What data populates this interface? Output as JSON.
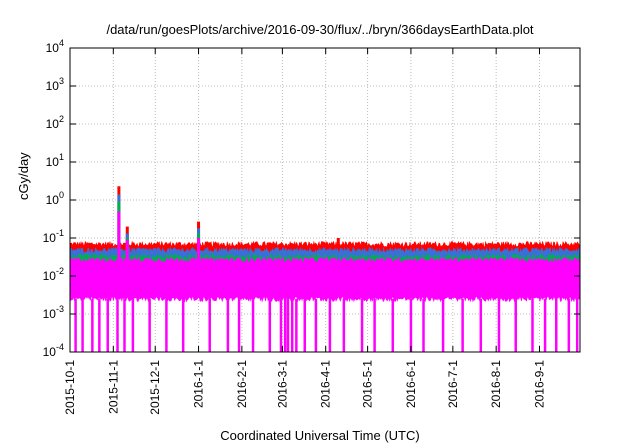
{
  "chart_data": {
    "type": "line",
    "title": "/data/run/goesPlots/archive/2016-09-30/flux/../bryn/366daysEarthData.plot",
    "xlabel": "Coordinated Universal Time (UTC)",
    "ylabel": "cGy/day",
    "xlim": [
      "2015-10-01",
      "2016-09-30"
    ],
    "ylim": [
      0.0001,
      10000
    ],
    "yscale": "log",
    "grid": true,
    "x_ticks": [
      "2015-10-1",
      "2015-11-1",
      "2015-12-1",
      "2016-1-1",
      "2016-2-1",
      "2016-3-1",
      "2016-4-1",
      "2016-5-1",
      "2016-6-1",
      "2016-7-1",
      "2016-8-1",
      "2016-9-1"
    ],
    "y_ticks": [
      {
        "value": 0.0001,
        "base": "10",
        "exp": "-4"
      },
      {
        "value": 0.001,
        "base": "10",
        "exp": "-3"
      },
      {
        "value": 0.01,
        "base": "10",
        "exp": "-2"
      },
      {
        "value": 0.1,
        "base": "10",
        "exp": "-1"
      },
      {
        "value": 1,
        "base": "10",
        "exp": "0"
      },
      {
        "value": 10,
        "base": "10",
        "exp": "1"
      },
      {
        "value": 100,
        "base": "10",
        "exp": "2"
      },
      {
        "value": 1000,
        "base": "10",
        "exp": "3"
      },
      {
        "value": 10000,
        "base": "10",
        "exp": "4"
      }
    ],
    "series": [
      {
        "color": "#ff0000",
        "baseline": 0.065,
        "spikes": [
          {
            "date": "2015-11-05",
            "value": 2.3
          },
          {
            "date": "2015-11-11",
            "value": 0.2
          },
          {
            "date": "2016-01-01",
            "value": 0.27
          },
          {
            "date": "2016-04-10",
            "value": 0.1
          }
        ]
      },
      {
        "color": "#3a6fd8",
        "baseline": 0.045,
        "spikes": [
          {
            "date": "2015-11-05",
            "value": 1.4
          },
          {
            "date": "2015-11-11",
            "value": 0.13
          },
          {
            "date": "2016-01-01",
            "value": 0.18
          }
        ]
      },
      {
        "color": "#00b050",
        "baseline": 0.03,
        "spikes": [
          {
            "date": "2015-11-05",
            "value": 0.9
          },
          {
            "date": "2015-11-11",
            "value": 0.1
          },
          {
            "date": "2016-01-01",
            "value": 0.13
          }
        ]
      },
      {
        "color": "#ff00ff",
        "baseline": 0.025,
        "floor": 0.0025,
        "spikes": [
          {
            "date": "2015-11-05",
            "value": 0.5
          },
          {
            "date": "2015-11-11",
            "value": 0.09
          },
          {
            "date": "2016-01-01",
            "value": 0.1
          }
        ],
        "dropouts": [
          "2015-10-05",
          "2015-10-10",
          "2015-10-17",
          "2015-10-22",
          "2015-10-28",
          "2015-11-04",
          "2015-11-09",
          "2015-11-15",
          "2015-11-27",
          "2015-12-09",
          "2015-12-21",
          "2016-01-09",
          "2016-01-22",
          "2016-01-30",
          "2016-02-09",
          "2016-02-21",
          "2016-02-29",
          "2016-03-03",
          "2016-03-05",
          "2016-03-08",
          "2016-03-11",
          "2016-03-17",
          "2016-03-25",
          "2016-04-04",
          "2016-04-14",
          "2016-04-27",
          "2016-05-06",
          "2016-05-19",
          "2016-06-01",
          "2016-06-10",
          "2016-06-24",
          "2016-07-08",
          "2016-07-21",
          "2016-08-03",
          "2016-08-15",
          "2016-08-27",
          "2016-09-05",
          "2016-09-13",
          "2016-09-22",
          "2016-09-28"
        ]
      }
    ]
  }
}
